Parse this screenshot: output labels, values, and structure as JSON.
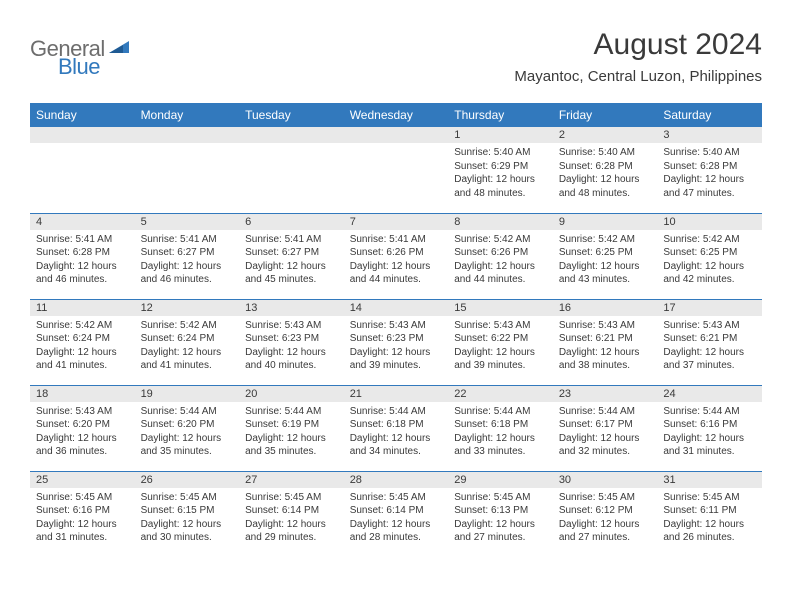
{
  "logo": {
    "general": "General",
    "blue": "Blue"
  },
  "title": "August 2024",
  "location": "Mayantoc, Central Luzon, Philippines",
  "colors": {
    "header_bg": "#3279bd",
    "header_text": "#ffffff",
    "daynum_bg": "#e9e9e9",
    "border": "#3279bd",
    "text": "#3a3a3a",
    "logo_gray": "#6d6d6d",
    "logo_blue": "#3279bd",
    "page_bg": "#ffffff"
  },
  "weekdays": [
    "Sunday",
    "Monday",
    "Tuesday",
    "Wednesday",
    "Thursday",
    "Friday",
    "Saturday"
  ],
  "weeks": [
    [
      null,
      null,
      null,
      null,
      {
        "n": "1",
        "sr": "5:40 AM",
        "ss": "6:29 PM",
        "dl": "12 hours and 48 minutes."
      },
      {
        "n": "2",
        "sr": "5:40 AM",
        "ss": "6:28 PM",
        "dl": "12 hours and 48 minutes."
      },
      {
        "n": "3",
        "sr": "5:40 AM",
        "ss": "6:28 PM",
        "dl": "12 hours and 47 minutes."
      }
    ],
    [
      {
        "n": "4",
        "sr": "5:41 AM",
        "ss": "6:28 PM",
        "dl": "12 hours and 46 minutes."
      },
      {
        "n": "5",
        "sr": "5:41 AM",
        "ss": "6:27 PM",
        "dl": "12 hours and 46 minutes."
      },
      {
        "n": "6",
        "sr": "5:41 AM",
        "ss": "6:27 PM",
        "dl": "12 hours and 45 minutes."
      },
      {
        "n": "7",
        "sr": "5:41 AM",
        "ss": "6:26 PM",
        "dl": "12 hours and 44 minutes."
      },
      {
        "n": "8",
        "sr": "5:42 AM",
        "ss": "6:26 PM",
        "dl": "12 hours and 44 minutes."
      },
      {
        "n": "9",
        "sr": "5:42 AM",
        "ss": "6:25 PM",
        "dl": "12 hours and 43 minutes."
      },
      {
        "n": "10",
        "sr": "5:42 AM",
        "ss": "6:25 PM",
        "dl": "12 hours and 42 minutes."
      }
    ],
    [
      {
        "n": "11",
        "sr": "5:42 AM",
        "ss": "6:24 PM",
        "dl": "12 hours and 41 minutes."
      },
      {
        "n": "12",
        "sr": "5:42 AM",
        "ss": "6:24 PM",
        "dl": "12 hours and 41 minutes."
      },
      {
        "n": "13",
        "sr": "5:43 AM",
        "ss": "6:23 PM",
        "dl": "12 hours and 40 minutes."
      },
      {
        "n": "14",
        "sr": "5:43 AM",
        "ss": "6:23 PM",
        "dl": "12 hours and 39 minutes."
      },
      {
        "n": "15",
        "sr": "5:43 AM",
        "ss": "6:22 PM",
        "dl": "12 hours and 39 minutes."
      },
      {
        "n": "16",
        "sr": "5:43 AM",
        "ss": "6:21 PM",
        "dl": "12 hours and 38 minutes."
      },
      {
        "n": "17",
        "sr": "5:43 AM",
        "ss": "6:21 PM",
        "dl": "12 hours and 37 minutes."
      }
    ],
    [
      {
        "n": "18",
        "sr": "5:43 AM",
        "ss": "6:20 PM",
        "dl": "12 hours and 36 minutes."
      },
      {
        "n": "19",
        "sr": "5:44 AM",
        "ss": "6:20 PM",
        "dl": "12 hours and 35 minutes."
      },
      {
        "n": "20",
        "sr": "5:44 AM",
        "ss": "6:19 PM",
        "dl": "12 hours and 35 minutes."
      },
      {
        "n": "21",
        "sr": "5:44 AM",
        "ss": "6:18 PM",
        "dl": "12 hours and 34 minutes."
      },
      {
        "n": "22",
        "sr": "5:44 AM",
        "ss": "6:18 PM",
        "dl": "12 hours and 33 minutes."
      },
      {
        "n": "23",
        "sr": "5:44 AM",
        "ss": "6:17 PM",
        "dl": "12 hours and 32 minutes."
      },
      {
        "n": "24",
        "sr": "5:44 AM",
        "ss": "6:16 PM",
        "dl": "12 hours and 31 minutes."
      }
    ],
    [
      {
        "n": "25",
        "sr": "5:45 AM",
        "ss": "6:16 PM",
        "dl": "12 hours and 31 minutes."
      },
      {
        "n": "26",
        "sr": "5:45 AM",
        "ss": "6:15 PM",
        "dl": "12 hours and 30 minutes."
      },
      {
        "n": "27",
        "sr": "5:45 AM",
        "ss": "6:14 PM",
        "dl": "12 hours and 29 minutes."
      },
      {
        "n": "28",
        "sr": "5:45 AM",
        "ss": "6:14 PM",
        "dl": "12 hours and 28 minutes."
      },
      {
        "n": "29",
        "sr": "5:45 AM",
        "ss": "6:13 PM",
        "dl": "12 hours and 27 minutes."
      },
      {
        "n": "30",
        "sr": "5:45 AM",
        "ss": "6:12 PM",
        "dl": "12 hours and 27 minutes."
      },
      {
        "n": "31",
        "sr": "5:45 AM",
        "ss": "6:11 PM",
        "dl": "12 hours and 26 minutes."
      }
    ]
  ],
  "labels": {
    "sunrise": "Sunrise: ",
    "sunset": "Sunset: ",
    "daylight": "Daylight: "
  }
}
